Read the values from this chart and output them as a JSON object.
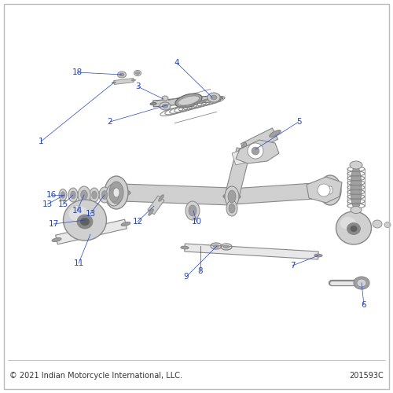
{
  "background_color": "#ffffff",
  "copyright_text": "© 2021 Indian Motorcycle International, LLC.",
  "part_number": "201593C",
  "label_color": "#2244cc",
  "label_font_size": 7.5,
  "footer_font_size": 7.0,
  "part_fill": "#d0d0d0",
  "part_fill2": "#e8e8e8",
  "part_dark": "#a0a0a0",
  "part_stroke": "#888888",
  "part_stroke2": "#606060",
  "leader_color": "#2244cc"
}
